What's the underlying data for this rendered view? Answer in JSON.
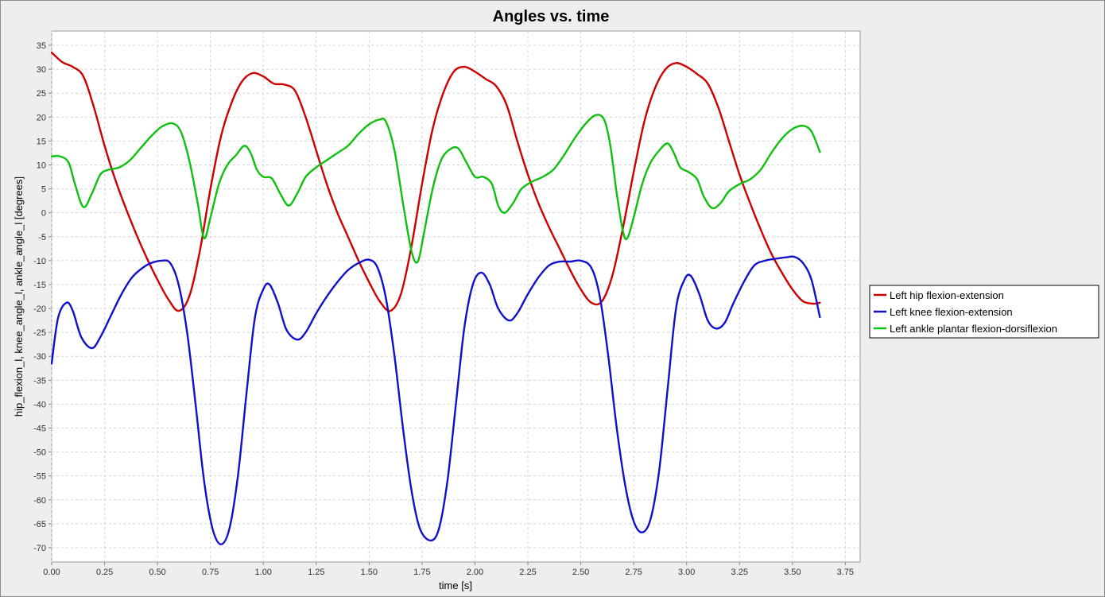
{
  "chart_data": {
    "type": "line",
    "title": "Angles vs. time",
    "xlabel": "time [s]",
    "ylabel": "hip_flexion_l, knee_angle_l, ankle_angle_l [degrees]",
    "xlim": [
      0,
      3.82
    ],
    "ylim": [
      -73,
      38
    ],
    "xticks": [
      "0.00",
      "0.25",
      "0.50",
      "0.75",
      "1.00",
      "1.25",
      "1.50",
      "1.75",
      "2.00",
      "2.25",
      "2.50",
      "2.75",
      "3.00",
      "3.25",
      "3.50",
      "3.75"
    ],
    "yticks": [
      "35",
      "30",
      "25",
      "20",
      "15",
      "10",
      "5",
      "0",
      "-5",
      "-10",
      "-15",
      "-20",
      "-25",
      "-30",
      "-35",
      "-40",
      "-45",
      "-50",
      "-55",
      "-60",
      "-65",
      "-70"
    ],
    "grid": true,
    "legend_position": "right",
    "series": [
      {
        "name": "Left hip flexion-extension",
        "color": "#cc0000",
        "points": [
          [
            0.0,
            33.5
          ],
          [
            0.05,
            31.5
          ],
          [
            0.1,
            30.5
          ],
          [
            0.15,
            28.5
          ],
          [
            0.2,
            22.0
          ],
          [
            0.25,
            14.0
          ],
          [
            0.3,
            7.0
          ],
          [
            0.35,
            1.0
          ],
          [
            0.4,
            -4.5
          ],
          [
            0.45,
            -9.5
          ],
          [
            0.5,
            -14.0
          ],
          [
            0.55,
            -18.0
          ],
          [
            0.6,
            -20.5
          ],
          [
            0.65,
            -17.5
          ],
          [
            0.7,
            -8.0
          ],
          [
            0.75,
            5.0
          ],
          [
            0.8,
            16.0
          ],
          [
            0.85,
            23.0
          ],
          [
            0.9,
            27.5
          ],
          [
            0.95,
            29.2
          ],
          [
            1.0,
            28.5
          ],
          [
            1.05,
            27.0
          ],
          [
            1.1,
            26.8
          ],
          [
            1.15,
            25.5
          ],
          [
            1.2,
            20.0
          ],
          [
            1.25,
            13.0
          ],
          [
            1.3,
            6.0
          ],
          [
            1.35,
            0.0
          ],
          [
            1.4,
            -5.0
          ],
          [
            1.45,
            -10.0
          ],
          [
            1.5,
            -14.5
          ],
          [
            1.55,
            -18.5
          ],
          [
            1.6,
            -20.5
          ],
          [
            1.65,
            -17.0
          ],
          [
            1.7,
            -7.0
          ],
          [
            1.75,
            6.0
          ],
          [
            1.8,
            17.5
          ],
          [
            1.85,
            25.0
          ],
          [
            1.9,
            29.5
          ],
          [
            1.95,
            30.5
          ],
          [
            2.0,
            29.5
          ],
          [
            2.05,
            28.0
          ],
          [
            2.1,
            26.5
          ],
          [
            2.15,
            22.5
          ],
          [
            2.2,
            15.0
          ],
          [
            2.25,
            8.0
          ],
          [
            2.3,
            2.0
          ],
          [
            2.35,
            -3.0
          ],
          [
            2.4,
            -7.5
          ],
          [
            2.45,
            -12.0
          ],
          [
            2.5,
            -16.0
          ],
          [
            2.55,
            -18.8
          ],
          [
            2.6,
            -18.5
          ],
          [
            2.65,
            -13.0
          ],
          [
            2.7,
            -3.0
          ],
          [
            2.75,
            8.5
          ],
          [
            2.8,
            19.0
          ],
          [
            2.85,
            26.0
          ],
          [
            2.9,
            30.0
          ],
          [
            2.95,
            31.3
          ],
          [
            3.0,
            30.5
          ],
          [
            3.05,
            29.0
          ],
          [
            3.1,
            27.0
          ],
          [
            3.15,
            22.0
          ],
          [
            3.2,
            15.0
          ],
          [
            3.25,
            8.0
          ],
          [
            3.3,
            2.0
          ],
          [
            3.35,
            -3.5
          ],
          [
            3.4,
            -8.5
          ],
          [
            3.45,
            -12.5
          ],
          [
            3.5,
            -16.0
          ],
          [
            3.55,
            -18.5
          ],
          [
            3.6,
            -19.0
          ],
          [
            3.63,
            -18.8
          ]
        ]
      },
      {
        "name": "Left knee flexion-extension",
        "color": "#1010cc",
        "points": [
          [
            0.0,
            -31.5
          ],
          [
            0.03,
            -22.0
          ],
          [
            0.07,
            -18.8
          ],
          [
            0.1,
            -20.5
          ],
          [
            0.14,
            -26.0
          ],
          [
            0.19,
            -28.3
          ],
          [
            0.23,
            -26.0
          ],
          [
            0.28,
            -21.5
          ],
          [
            0.33,
            -17.0
          ],
          [
            0.38,
            -13.5
          ],
          [
            0.43,
            -11.5
          ],
          [
            0.47,
            -10.5
          ],
          [
            0.52,
            -10.0
          ],
          [
            0.56,
            -10.5
          ],
          [
            0.6,
            -15.0
          ],
          [
            0.64,
            -25.0
          ],
          [
            0.68,
            -40.0
          ],
          [
            0.72,
            -56.0
          ],
          [
            0.76,
            -66.0
          ],
          [
            0.8,
            -69.3
          ],
          [
            0.84,
            -66.0
          ],
          [
            0.88,
            -55.0
          ],
          [
            0.92,
            -38.0
          ],
          [
            0.96,
            -22.0
          ],
          [
            1.0,
            -16.0
          ],
          [
            1.03,
            -15.0
          ],
          [
            1.07,
            -19.0
          ],
          [
            1.11,
            -24.5
          ],
          [
            1.16,
            -26.5
          ],
          [
            1.2,
            -25.0
          ],
          [
            1.25,
            -21.0
          ],
          [
            1.3,
            -17.5
          ],
          [
            1.35,
            -14.5
          ],
          [
            1.4,
            -12.0
          ],
          [
            1.45,
            -10.5
          ],
          [
            1.5,
            -9.8
          ],
          [
            1.54,
            -11.5
          ],
          [
            1.58,
            -18.0
          ],
          [
            1.62,
            -30.0
          ],
          [
            1.66,
            -45.0
          ],
          [
            1.7,
            -58.0
          ],
          [
            1.74,
            -66.0
          ],
          [
            1.79,
            -68.5
          ],
          [
            1.83,
            -66.0
          ],
          [
            1.87,
            -56.0
          ],
          [
            1.91,
            -40.0
          ],
          [
            1.95,
            -24.0
          ],
          [
            1.99,
            -15.0
          ],
          [
            2.03,
            -12.5
          ],
          [
            2.07,
            -15.0
          ],
          [
            2.11,
            -20.0
          ],
          [
            2.16,
            -22.5
          ],
          [
            2.2,
            -21.0
          ],
          [
            2.25,
            -17.0
          ],
          [
            2.3,
            -13.5
          ],
          [
            2.35,
            -11.0
          ],
          [
            2.4,
            -10.2
          ],
          [
            2.45,
            -10.2
          ],
          [
            2.5,
            -10.0
          ],
          [
            2.55,
            -11.5
          ],
          [
            2.59,
            -17.5
          ],
          [
            2.63,
            -30.0
          ],
          [
            2.67,
            -45.0
          ],
          [
            2.71,
            -57.0
          ],
          [
            2.75,
            -64.5
          ],
          [
            2.79,
            -66.8
          ],
          [
            2.83,
            -64.0
          ],
          [
            2.87,
            -54.0
          ],
          [
            2.91,
            -37.0
          ],
          [
            2.95,
            -20.0
          ],
          [
            2.99,
            -14.0
          ],
          [
            3.02,
            -13.2
          ],
          [
            3.06,
            -17.0
          ],
          [
            3.1,
            -22.5
          ],
          [
            3.14,
            -24.2
          ],
          [
            3.18,
            -23.0
          ],
          [
            3.22,
            -19.0
          ],
          [
            3.27,
            -14.5
          ],
          [
            3.32,
            -11.0
          ],
          [
            3.37,
            -10.0
          ],
          [
            3.42,
            -9.6
          ],
          [
            3.47,
            -9.3
          ],
          [
            3.51,
            -9.2
          ],
          [
            3.55,
            -10.5
          ],
          [
            3.59,
            -14.0
          ],
          [
            3.63,
            -21.8
          ]
        ]
      },
      {
        "name": "Left ankle plantar flexion-dorsiflexion",
        "color": "#10c010",
        "points": [
          [
            0.0,
            11.8
          ],
          [
            0.04,
            11.8
          ],
          [
            0.08,
            10.5
          ],
          [
            0.11,
            6.0
          ],
          [
            0.15,
            1.2
          ],
          [
            0.19,
            4.0
          ],
          [
            0.23,
            8.0
          ],
          [
            0.27,
            9.0
          ],
          [
            0.32,
            9.5
          ],
          [
            0.37,
            11.0
          ],
          [
            0.42,
            13.5
          ],
          [
            0.47,
            16.0
          ],
          [
            0.52,
            18.0
          ],
          [
            0.57,
            18.7
          ],
          [
            0.61,
            17.0
          ],
          [
            0.65,
            11.0
          ],
          [
            0.69,
            2.0
          ],
          [
            0.72,
            -5.3
          ],
          [
            0.75,
            -1.0
          ],
          [
            0.79,
            6.0
          ],
          [
            0.83,
            10.0
          ],
          [
            0.87,
            12.0
          ],
          [
            0.91,
            14.0
          ],
          [
            0.94,
            12.5
          ],
          [
            0.97,
            9.0
          ],
          [
            1.0,
            7.5
          ],
          [
            1.04,
            7.2
          ],
          [
            1.08,
            4.0
          ],
          [
            1.12,
            1.5
          ],
          [
            1.16,
            4.0
          ],
          [
            1.2,
            7.5
          ],
          [
            1.25,
            9.5
          ],
          [
            1.3,
            11.0
          ],
          [
            1.35,
            12.5
          ],
          [
            1.4,
            14.0
          ],
          [
            1.45,
            16.5
          ],
          [
            1.5,
            18.5
          ],
          [
            1.55,
            19.5
          ],
          [
            1.58,
            19.0
          ],
          [
            1.62,
            13.0
          ],
          [
            1.66,
            2.0
          ],
          [
            1.7,
            -8.0
          ],
          [
            1.73,
            -10.2
          ],
          [
            1.76,
            -4.0
          ],
          [
            1.8,
            5.0
          ],
          [
            1.84,
            11.0
          ],
          [
            1.88,
            13.2
          ],
          [
            1.92,
            13.5
          ],
          [
            1.96,
            10.5
          ],
          [
            2.0,
            7.5
          ],
          [
            2.04,
            7.5
          ],
          [
            2.08,
            6.0
          ],
          [
            2.11,
            1.5
          ],
          [
            2.14,
            0.0
          ],
          [
            2.18,
            2.0
          ],
          [
            2.22,
            5.0
          ],
          [
            2.27,
            6.5
          ],
          [
            2.32,
            7.5
          ],
          [
            2.37,
            9.0
          ],
          [
            2.42,
            12.0
          ],
          [
            2.47,
            15.5
          ],
          [
            2.52,
            18.5
          ],
          [
            2.57,
            20.4
          ],
          [
            2.61,
            19.5
          ],
          [
            2.64,
            14.0
          ],
          [
            2.67,
            4.0
          ],
          [
            2.7,
            -4.0
          ],
          [
            2.72,
            -5.3
          ],
          [
            2.75,
            -1.0
          ],
          [
            2.79,
            6.0
          ],
          [
            2.83,
            10.5
          ],
          [
            2.87,
            13.0
          ],
          [
            2.91,
            14.5
          ],
          [
            2.94,
            12.5
          ],
          [
            2.97,
            9.5
          ],
          [
            3.01,
            8.5
          ],
          [
            3.05,
            7.0
          ],
          [
            3.08,
            3.5
          ],
          [
            3.12,
            1.0
          ],
          [
            3.16,
            2.0
          ],
          [
            3.2,
            4.5
          ],
          [
            3.25,
            6.0
          ],
          [
            3.3,
            7.0
          ],
          [
            3.35,
            9.0
          ],
          [
            3.4,
            12.5
          ],
          [
            3.45,
            15.5
          ],
          [
            3.5,
            17.5
          ],
          [
            3.55,
            18.2
          ],
          [
            3.59,
            17.0
          ],
          [
            3.63,
            12.7
          ]
        ]
      }
    ]
  }
}
